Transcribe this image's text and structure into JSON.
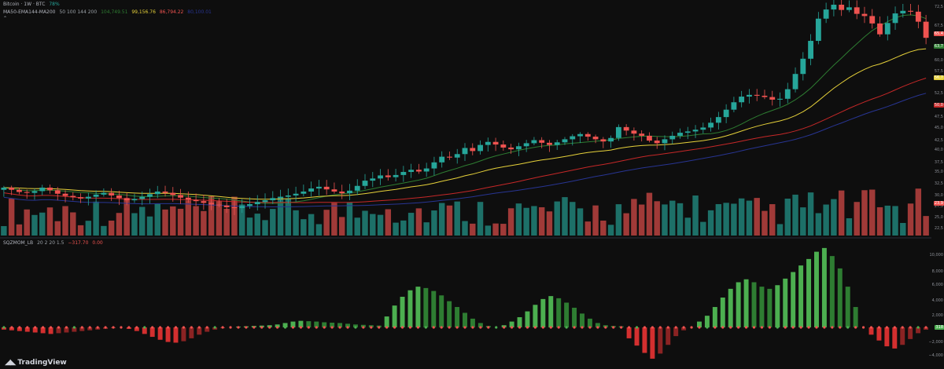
{
  "header": {
    "symbol_text": "Bitcoin · 1W · BTC",
    "symbol_short": "BTC",
    "symbol_change": "78%",
    "collapse_icon": "chevron-up-icon"
  },
  "indicators": {
    "ma_legend_name": "MA50-EMA144-MA200",
    "ma_params": "50 100 144 200",
    "ma_values": [
      {
        "value": "104,749.51",
        "color": "#2e7d32"
      },
      {
        "value": "99,156.76",
        "color": "#e6d13a"
      },
      {
        "value": "86,794.22",
        "color": "#c62828"
      },
      {
        "value": "80,100.01",
        "color": "#283593"
      }
    ],
    "sqz_name": "SQZMOM_LB",
    "sqz_params": "20 2 20 1.5",
    "sqz_values": [
      {
        "value": "−317.70",
        "color": "#ef5350"
      },
      {
        "value": "0.00",
        "color": "#ef5350"
      }
    ]
  },
  "price_axis": {
    "labels": [
      "72,5",
      "67,5",
      "62,5",
      "60,0",
      "57,5",
      "52,5",
      "50,0",
      "47,5",
      "45,0",
      "42,5",
      "40,0",
      "37,5",
      "35,0",
      "32,5",
      "30,0",
      "27,5",
      "25,0",
      "22,5"
    ],
    "tags": [
      {
        "text": "65,4",
        "color": "#ef5350"
      },
      {
        "text": "63,7",
        "color": "#2e7d32"
      },
      {
        "text": "56,7",
        "color": "#e6d13a"
      },
      {
        "text": "50,0",
        "color": "#c62828"
      },
      {
        "text": "23,9",
        "color": "#ef5350"
      }
    ]
  },
  "osc_axis": {
    "labels": [
      "10,000",
      "8,000",
      "6,000",
      "4,000",
      "2,000",
      "−2,000",
      "−4,000"
    ],
    "tag": "318"
  },
  "watermark": "TradingView",
  "colors": {
    "up": "#26a69a",
    "down": "#ef5350",
    "osc_up": "#4caf50",
    "osc_down": "#d32f2f",
    "ma50": "#2e7d32",
    "ema144": "#e6d13a",
    "ma200": "#c62828",
    "ma_blue": "#283593"
  },
  "chart_data": {
    "type": "candlestick",
    "price_range": [
      20,
      73
    ],
    "candles_close": [
      31,
      30.5,
      30,
      29.8,
      30.2,
      31,
      30.4,
      29.6,
      29.1,
      28.8,
      28.5,
      28.9,
      29.4,
      29.8,
      29.2,
      28.6,
      28.1,
      28.4,
      28.9,
      29.5,
      30.1,
      29.8,
      29.3,
      28.7,
      28.2,
      27.9,
      27.5,
      27.1,
      26.9,
      26.5,
      26.3,
      26.8,
      27.2,
      27.7,
      28.1,
      28.6,
      28.9,
      29.2,
      29.6,
      30.1,
      30.8,
      31.2,
      30.6,
      30.1,
      29.7,
      30.3,
      31.4,
      32.6,
      33.1,
      33.8,
      33.4,
      33.9,
      34.6,
      35.1,
      34.7,
      35.4,
      36.8,
      38.1,
      37.9,
      38.7,
      40.1,
      39.4,
      40.8,
      41.5,
      40.9,
      40.2,
      39.8,
      40.5,
      41.2,
      41.9,
      41.3,
      40.8,
      41.4,
      42.1,
      42.8,
      43.3,
      42.7,
      42.1,
      41.6,
      42.4,
      44.9,
      44.1,
      43.4,
      42.9,
      41.8,
      41.2,
      42.1,
      42.9,
      43.6,
      43.9,
      44.3,
      44.8,
      45.9,
      47.2,
      48.9,
      50.6,
      51.9,
      52.3,
      52.1,
      51.8,
      51.2,
      51.4,
      53.6,
      57.1,
      60.6,
      64.7,
      69.8,
      71.9,
      73.0,
      71.8,
      72.4,
      70.9,
      70.4,
      68.7,
      66.2,
      68.8,
      71.0,
      71.6,
      71.4,
      69.1,
      65.4
    ],
    "osc_values": [
      -300,
      -400,
      -500,
      -600,
      -700,
      -800,
      -900,
      -800,
      -700,
      -600,
      -500,
      -400,
      -300,
      -200,
      -100,
      0,
      -200,
      -500,
      -900,
      -1300,
      -1700,
      -2000,
      -2100,
      -1900,
      -1500,
      -1000,
      -600,
      -300,
      -100,
      0,
      100,
      150,
      200,
      250,
      300,
      400,
      600,
      800,
      900,
      850,
      800,
      700,
      650,
      600,
      500,
      400,
      350,
      300,
      250,
      1500,
      3000,
      4200,
      5100,
      5600,
      5400,
      5000,
      4400,
      3600,
      2800,
      2000,
      1200,
      600,
      200,
      0,
      300,
      800,
      1400,
      2200,
      3100,
      3900,
      4300,
      4000,
      3400,
      2700,
      1900,
      1200,
      600,
      300,
      200,
      150,
      -1500,
      -2500,
      -3500,
      -4300,
      -3600,
      -2400,
      -1200,
      -400,
      0,
      800,
      1600,
      2800,
      4100,
      5300,
      6200,
      6600,
      6200,
      5600,
      5300,
      5800,
      6700,
      7600,
      8500,
      9400,
      10400,
      10900,
      9800,
      8100,
      5600,
      2800,
      0,
      -1000,
      -1800,
      -2600,
      -2900,
      -2400,
      -1600,
      -800,
      -318
    ],
    "x_range": [
      0,
      1
    ],
    "title": ""
  }
}
